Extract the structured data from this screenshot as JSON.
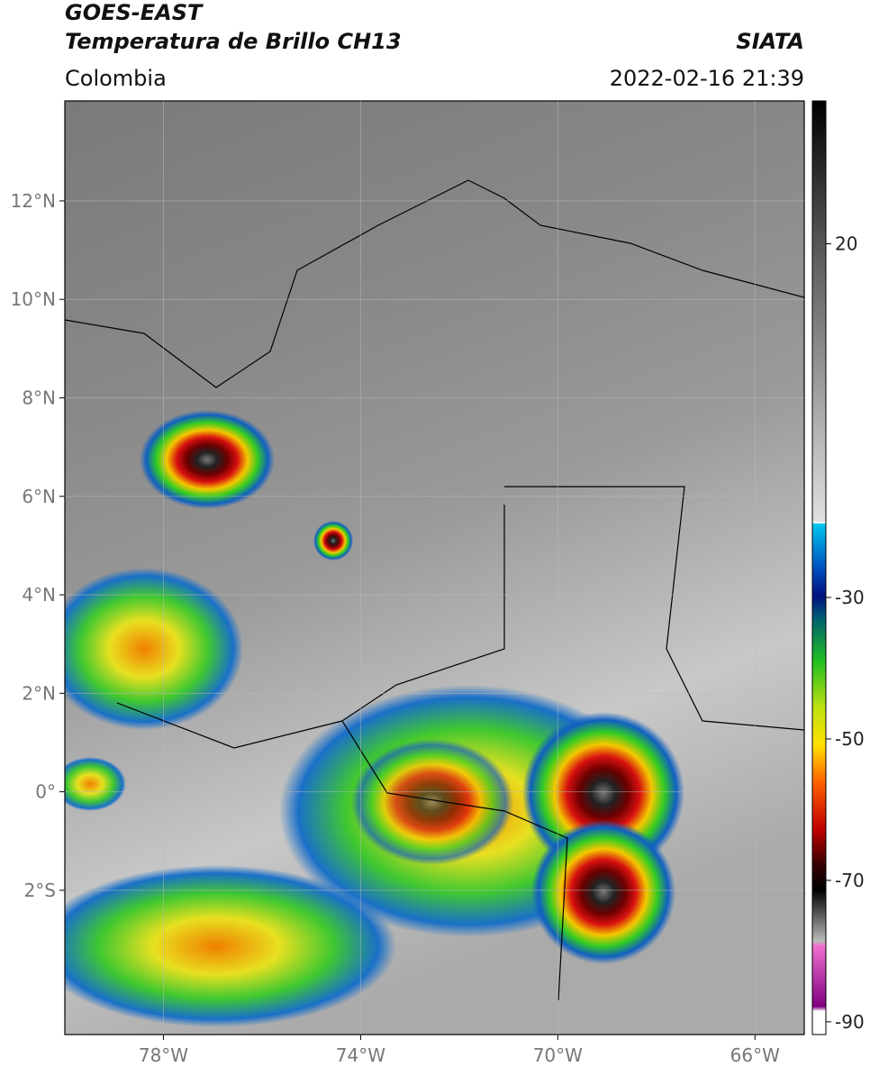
{
  "header": {
    "satellite": "GOES-EAST",
    "product": "Temperatura de Brillo CH13",
    "source": "SIATA",
    "region": "Colombia",
    "datetime": "2022-02-16 21:39"
  },
  "map": {
    "xlim": [
      -80,
      -65
    ],
    "ylim": [
      -4.93,
      14.03
    ],
    "xticks": [
      {
        "value": -78,
        "label": "78°W"
      },
      {
        "value": -74,
        "label": "74°W"
      },
      {
        "value": -70,
        "label": "70°W"
      },
      {
        "value": -66,
        "label": "66°W"
      }
    ],
    "yticks": [
      {
        "value": 12,
        "label": "12°N"
      },
      {
        "value": 10,
        "label": "10°N"
      },
      {
        "value": 8,
        "label": "8°N"
      },
      {
        "value": 6,
        "label": "6°N"
      },
      {
        "value": 4,
        "label": "4°N"
      },
      {
        "value": 2,
        "label": "2°N"
      },
      {
        "value": 0,
        "label": "0°"
      },
      {
        "value": -2,
        "label": "2°S"
      }
    ]
  },
  "colorbar": {
    "lim": [
      -91.8,
      40.2
    ],
    "ticks": [
      20,
      -30,
      -50,
      -70,
      -90
    ]
  }
}
